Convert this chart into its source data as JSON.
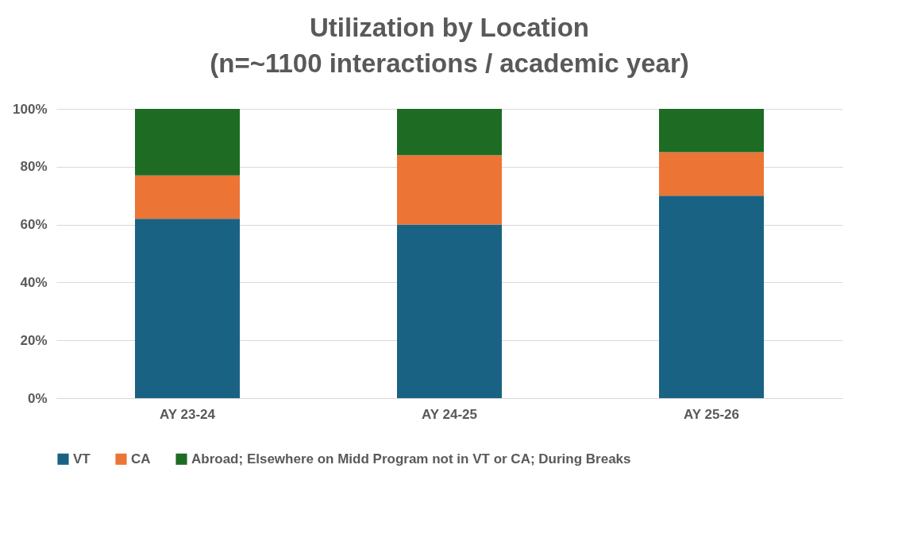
{
  "chart_data": {
    "type": "bar",
    "title": "Utilization by Location",
    "subtitle": "(n=~1100 interactions / academic year)",
    "categories": [
      "AY 23-24",
      "AY 24-25",
      "AY 25-26"
    ],
    "stacked": true,
    "series": [
      {
        "name": "VT",
        "color": "#1a6283",
        "values": [
          62,
          60,
          70
        ]
      },
      {
        "name": "CA",
        "color": "#ec7535",
        "values": [
          15,
          24,
          15
        ]
      },
      {
        "name": "Abroad; Elsewhere on Midd Program not in VT or CA; During Breaks",
        "color": "#1e6b24",
        "values": [
          23,
          16,
          15
        ]
      }
    ],
    "ylim": [
      0,
      100
    ],
    "yticks": [
      {
        "value": 0,
        "label": "0%"
      },
      {
        "value": 20,
        "label": "20%"
      },
      {
        "value": 40,
        "label": "40%"
      },
      {
        "value": 60,
        "label": "60%"
      },
      {
        "value": 80,
        "label": "80%"
      },
      {
        "value": 100,
        "label": "100%"
      }
    ],
    "grid": "y",
    "legend": "bottom"
  }
}
